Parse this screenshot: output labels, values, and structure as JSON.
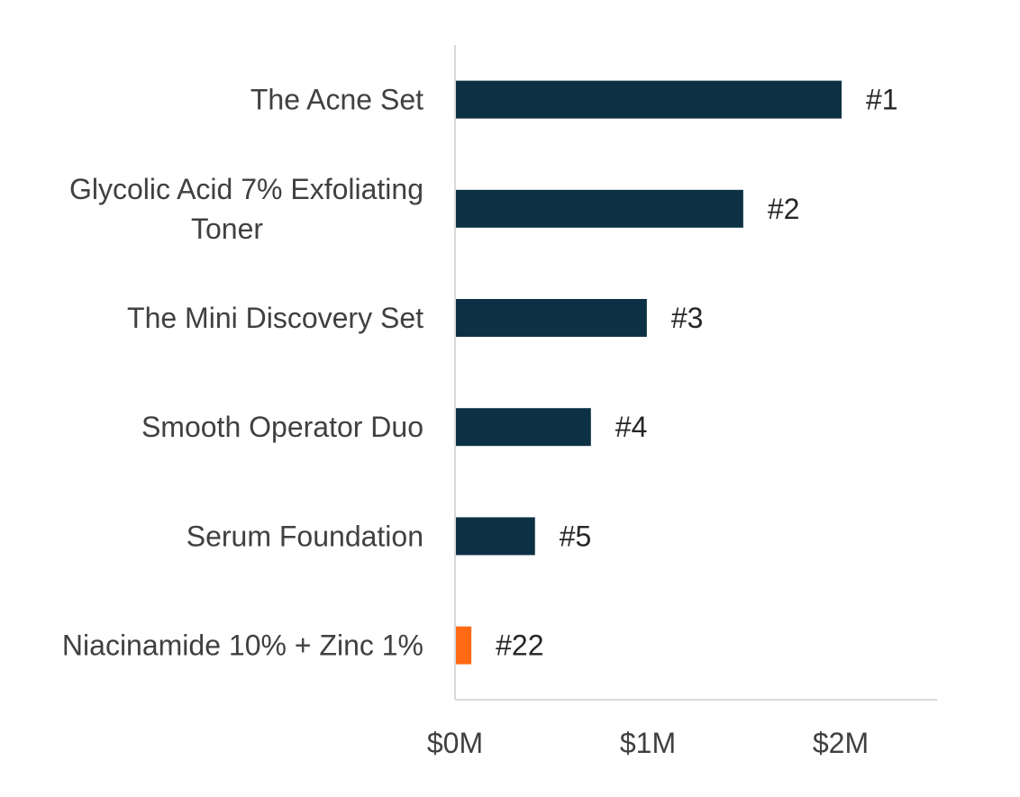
{
  "chart_data": {
    "type": "bar",
    "orientation": "horizontal",
    "title": "",
    "xlabel": "",
    "ylabel": "",
    "categories": [
      [
        "The Acne Set"
      ],
      [
        "Glycolic Acid 7% Exfoliating",
        "Toner"
      ],
      [
        "The Mini Discovery Set"
      ],
      [
        "Smooth Operator Duo"
      ],
      [
        "Serum Foundation"
      ],
      [
        "Niacinamide 10% + Zinc 1%"
      ]
    ],
    "values": [
      2.0,
      1.49,
      0.99,
      0.7,
      0.41,
      0.08
    ],
    "value_unit": "$M",
    "data_labels": [
      "#1",
      "#2",
      "#3",
      "#4",
      "#5",
      "#22"
    ],
    "bar_colors": [
      "#0d3144",
      "#0d3144",
      "#0d3144",
      "#0d3144",
      "#0d3144",
      "#ff6a13"
    ],
    "xlim": [
      0,
      2.5
    ],
    "x_ticks": [
      0,
      1,
      2
    ],
    "x_tick_labels": [
      "$0M",
      "$1M",
      "$2M"
    ],
    "grid": false,
    "legend": "none"
  }
}
